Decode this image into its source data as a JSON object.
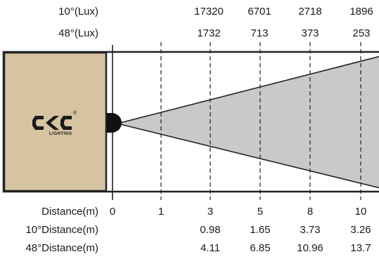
{
  "top_rows": [
    {
      "label": "10°(Lux)",
      "values": [
        "17320",
        "6701",
        "2718",
        "1896"
      ]
    },
    {
      "label": "48°(Lux)",
      "values": [
        "1732",
        "713",
        "373",
        "253"
      ]
    }
  ],
  "bottom_rows": [
    {
      "label": "Distance(m)",
      "values": [
        "0",
        "1",
        "3",
        "5",
        "8",
        "10"
      ]
    },
    {
      "label": "10°Distance(m)",
      "values": [
        "",
        "",
        "0.98",
        "1.65",
        "3.73",
        "3.26"
      ]
    },
    {
      "label": "48°Distance(m)",
      "values": [
        "",
        "",
        "4.11",
        "6.85",
        "10.96",
        "13.7"
      ]
    }
  ],
  "logo": {
    "brand": "CKC",
    "sub": "LIGHTING",
    "mark": "®"
  },
  "colors": {
    "wall": "#d6c3a1",
    "beam": "#c9c9c9",
    "outline": "#222222"
  }
}
